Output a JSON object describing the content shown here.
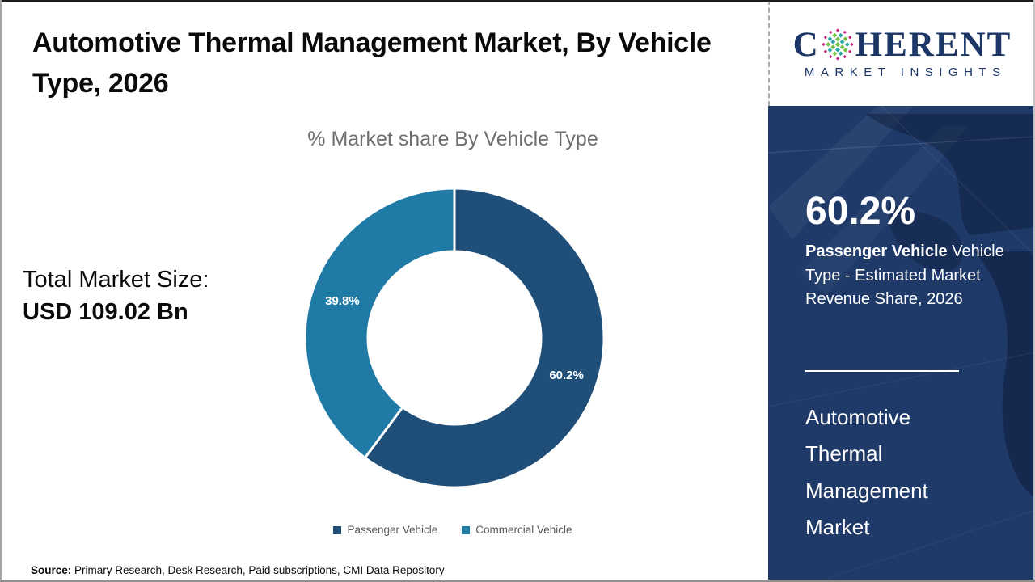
{
  "header": {
    "title": "Automotive Thermal Management Market, By Vehicle Type, 2026"
  },
  "chart_data": {
    "type": "pie",
    "subtype": "donut",
    "title": "% Market share By Vehicle Type",
    "categories": [
      "Passenger Vehicle",
      "Commercial Vehicle"
    ],
    "values": [
      60.2,
      39.8
    ],
    "labels": [
      "60.2%",
      "39.8%"
    ],
    "colors": [
      "#1f4e79",
      "#1f7aa6"
    ],
    "start_angle_deg": 0,
    "legend_position": "bottom"
  },
  "left_panel": {
    "total_label": "Total Market Size:",
    "total_value": "USD 109.02 Bn"
  },
  "source": {
    "label": "Source:",
    "text": " Primary Research, Desk Research, Paid subscriptions, CMI Data Repository"
  },
  "logo": {
    "word_start": "C",
    "word_end": "HERENT",
    "subtitle": "MARKET INSIGHTS",
    "icon": "dotted-globe-icon",
    "navy": "#1b3666"
  },
  "sidebar": {
    "stat_value": "60.2%",
    "stat_segment": "Passenger Vehicle",
    "stat_desc": " Vehicle Type - Estimated Market Revenue Share, 2026",
    "market_name": "Automotive Thermal Management Market",
    "background_color": "#1f3a69"
  }
}
